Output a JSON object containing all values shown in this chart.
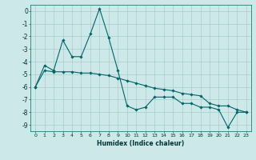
{
  "xlabel": "Humidex (Indice chaleur)",
  "background_color": "#cce8e8",
  "grid_color": "#aacccc",
  "line_color": "#006666",
  "xlim": [
    -0.5,
    23.5
  ],
  "ylim": [
    -9.5,
    0.5
  ],
  "xticks": [
    0,
    1,
    2,
    3,
    4,
    5,
    6,
    7,
    8,
    9,
    10,
    11,
    12,
    13,
    14,
    15,
    16,
    17,
    18,
    19,
    20,
    21,
    22,
    23
  ],
  "yticks": [
    0,
    -1,
    -2,
    -3,
    -4,
    -5,
    -6,
    -7,
    -8,
    -9
  ],
  "series1_x": [
    0,
    1,
    2,
    3,
    4,
    5,
    6,
    7,
    8,
    9,
    10,
    11,
    12,
    13,
    14,
    15,
    16,
    17,
    18,
    19,
    20,
    21,
    22,
    23
  ],
  "series1_y": [
    -6.0,
    -4.3,
    -4.7,
    -2.3,
    -3.6,
    -3.6,
    -1.8,
    0.2,
    -2.1,
    -4.7,
    -7.5,
    -7.8,
    -7.6,
    -6.8,
    -6.8,
    -6.8,
    -7.3,
    -7.3,
    -7.6,
    -7.6,
    -7.8,
    -9.2,
    -8.0,
    -8.0
  ],
  "series2_x": [
    0,
    1,
    2,
    3,
    4,
    5,
    6,
    7,
    8,
    9,
    10,
    11,
    12,
    13,
    14,
    15,
    16,
    17,
    18,
    19,
    20,
    21,
    22,
    23
  ],
  "series2_y": [
    -6.0,
    -4.7,
    -4.8,
    -4.8,
    -4.8,
    -4.9,
    -4.9,
    -5.0,
    -5.1,
    -5.3,
    -5.5,
    -5.7,
    -5.9,
    -6.1,
    -6.2,
    -6.3,
    -6.5,
    -6.6,
    -6.7,
    -7.3,
    -7.5,
    -7.5,
    -7.8,
    -8.0
  ]
}
